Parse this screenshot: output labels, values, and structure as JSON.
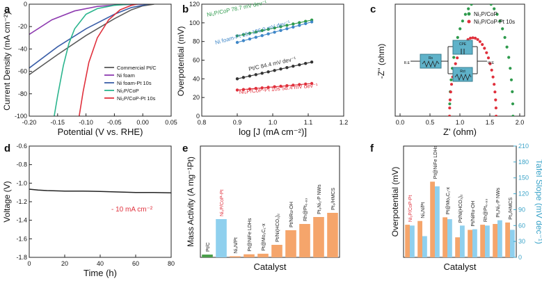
{
  "chart_data": [
    {
      "id": "a",
      "type": "line",
      "panel_label": "a",
      "xlabel": "Potential (V vs. RHE)",
      "ylabel": "Current Density (mA cm⁻²)",
      "xlim": [
        -0.2,
        0.05
      ],
      "ylim": [
        -100,
        0
      ],
      "xticks": [
        "-0.20",
        "-0.15",
        "-0.10",
        "-0.05",
        "0.00",
        "0.05"
      ],
      "yticks": [
        "0",
        "-20",
        "-40",
        "-60",
        "-80",
        "-100"
      ],
      "legend": "middle-right",
      "series": [
        {
          "name": "Commercial Pt/C",
          "color": "#5a5a5a",
          "x": [
            -0.2,
            -0.15,
            -0.1,
            -0.05,
            -0.02,
            0.0,
            0.02
          ],
          "y": [
            -63,
            -45,
            -28,
            -13,
            -5,
            -1.5,
            0
          ]
        },
        {
          "name": "Ni foam",
          "color": "#8e3bb0",
          "x": [
            -0.2,
            -0.16,
            -0.12,
            -0.08,
            -0.04,
            0.0
          ],
          "y": [
            -27,
            -14,
            -6,
            -2,
            -0.5,
            0
          ]
        },
        {
          "name": "Ni foam-Pt 10s",
          "color": "#3a5ea8",
          "x": [
            -0.2,
            -0.15,
            -0.1,
            -0.05,
            -0.02,
            0.01
          ],
          "y": [
            -57,
            -38,
            -22,
            -9,
            -3,
            0
          ]
        },
        {
          "name": "Ni₂P/CoP",
          "color": "#2bb58e",
          "x": [
            -0.156,
            -0.15,
            -0.14,
            -0.13,
            -0.12,
            -0.1,
            -0.08,
            -0.05,
            -0.02
          ],
          "y": [
            -100,
            -82,
            -55,
            -35,
            -22,
            -9,
            -4,
            -1,
            0
          ]
        },
        {
          "name": "Ni₂P/CoP-Pt 10s",
          "color": "#e0303c",
          "x": [
            -0.112,
            -0.105,
            -0.095,
            -0.08,
            -0.06,
            -0.04,
            -0.02,
            -0.01
          ],
          "y": [
            -100,
            -78,
            -52,
            -30,
            -14,
            -5,
            -1,
            0
          ]
        }
      ]
    },
    {
      "id": "b",
      "type": "scatter",
      "panel_label": "b",
      "xlabel": "log [J (mA cm⁻²)]",
      "ylabel": "Overpotential (mV)",
      "xlim": [
        0.8,
        1.2
      ],
      "ylim": [
        0,
        120
      ],
      "xticks": [
        "0.8",
        "0.9",
        "1.0",
        "1.1",
        "1.2"
      ],
      "yticks": [
        "0",
        "20",
        "40",
        "60",
        "80",
        "100",
        "120"
      ],
      "series": [
        {
          "name": "Ni₂P/CoP 78.7 mV dev⁻¹",
          "color": "#2e9a4c",
          "x0": 0.9,
          "x1": 1.11,
          "y0": 86,
          "y1": 103
        },
        {
          "name": "Ni foam-Pt 10s 106.9 mV dev⁻¹",
          "color": "#3f87c8",
          "x0": 0.9,
          "x1": 1.11,
          "y0": 79,
          "y1": 101
        },
        {
          "name": "Pt/C 84.4 mV dev⁻¹",
          "color": "#333333",
          "x0": 0.9,
          "x1": 1.11,
          "y0": 40,
          "y1": 58
        },
        {
          "name": "Ni₂P/CoP-Pt 10s 58.4 mV dev⁻¹",
          "color": "#e0303c",
          "x0": 0.9,
          "x1": 1.11,
          "y0": 28,
          "y1": 35
        }
      ]
    },
    {
      "id": "c",
      "type": "scatter",
      "panel_label": "c",
      "xlabel": "Z' (ohm)",
      "ylabel": "-Z'' (ohm)",
      "xlim": [
        0,
        2
      ],
      "ylim": [
        0,
        5
      ],
      "xticks": [
        "0.0",
        "0.5",
        "1.0",
        "1.5",
        "2.0"
      ],
      "legend": "top-right",
      "circuit_labels": [
        "R.E",
        "Rs",
        "CPE",
        "Rct",
        "W.E"
      ],
      "series": [
        {
          "name": "Ni₂P/CoP",
          "color": "#2e9a4c",
          "center": 1.33,
          "radius": 0.49,
          "ymax": 1.5
        },
        {
          "name": "Ni₂P/CoP-Pt 10s",
          "color": "#e0303c",
          "center": 1.2,
          "radius": 0.36,
          "ymax": 1.0
        }
      ]
    },
    {
      "id": "d",
      "type": "line",
      "panel_label": "d",
      "xlabel": "Time (h)",
      "ylabel": "Voltage (V)",
      "xlim": [
        0,
        80
      ],
      "ylim": [
        -1.8,
        -0.6
      ],
      "xticks": [
        "0",
        "20",
        "40",
        "60",
        "80"
      ],
      "yticks": [
        "-0.6",
        "-0.8",
        "-1.0",
        "-1.2",
        "-1.4",
        "-1.6",
        "-1.8"
      ],
      "annotation": "- 10 mA cm⁻²",
      "series": [
        {
          "name": "stability",
          "color": "#222222",
          "x": [
            0,
            5,
            10,
            20,
            30,
            40,
            50,
            60,
            70,
            80
          ],
          "y": [
            -1.065,
            -1.075,
            -1.08,
            -1.085,
            -1.085,
            -1.09,
            -1.095,
            -1.1,
            -1.1,
            -1.105
          ]
        }
      ]
    },
    {
      "id": "e",
      "type": "bar",
      "panel_label": "e",
      "xlabel": "Catalyst",
      "ylabel": "Mass Activity (A mg⁻¹Pt)",
      "ylim": [
        0,
        8
      ],
      "categories": [
        "Pt/C",
        "Ni₂P/CoP-Pt",
        "Ni₃N/Pt",
        "Pt@NiFe LDHs",
        "Pt@Mo₂C₁-x",
        "Pt/Ni(HCO₃)₂",
        "Pt/NiRu-OH",
        "Rh@Pt₀.₈₃",
        "Pt₃Ni₂-P NWs",
        "Pt₃/HMCS"
      ],
      "values": [
        0.2,
        2.75,
        0.08,
        0.22,
        0.26,
        0.9,
        1.95,
        2.4,
        2.9,
        3.2
      ],
      "colors": [
        "#4a9e4a",
        "#8fd0ee",
        "#f5a56b",
        "#f5a56b",
        "#f5a56b",
        "#f5a56b",
        "#f5a56b",
        "#f5a56b",
        "#f5a56b",
        "#f5a56b"
      ],
      "label_colors": [
        "#222222",
        "#e0303c",
        "#222222",
        "#222222",
        "#222222",
        "#222222",
        "#222222",
        "#222222",
        "#222222",
        "#222222"
      ]
    },
    {
      "id": "f",
      "type": "bar",
      "panel_label": "f",
      "xlabel": "Catalyst",
      "ylabel": "Overpotential (mV)",
      "ylabel_right": "Tafel Slope (mV dec⁻¹)",
      "ylim": [
        0,
        150
      ],
      "ylim_right": [
        0,
        210
      ],
      "yticks_right": [
        "0",
        "30",
        "60",
        "90",
        "120",
        "150",
        "180",
        "210"
      ],
      "categories": [
        "Ni₂P/CoP-Pt",
        "Ni₃N/Pt",
        "Pt@NiFe LDHs",
        "Pt@Mo₂C₁-x",
        "Pt/Ni(HCO₃)₂",
        "Pt/NiRu-OH",
        "Rh@Pt₀.₈₃",
        "Pt₃Ni₂-P NWs",
        "Pt₃/HMCS"
      ],
      "series": [
        {
          "name": "Overpotential",
          "axis": "left",
          "color": "#f5a56b",
          "values": [
            44,
            49,
            102,
            54,
            27,
            37,
            44,
            45,
            47
          ]
        },
        {
          "name": "Tafel Slope",
          "axis": "right",
          "color": "#8fd0ee",
          "values": [
            60,
            40,
            134,
            72,
            60,
            53,
            60,
            70,
            52
          ]
        }
      ],
      "label_colors": [
        "#e0303c",
        "#222222",
        "#222222",
        "#222222",
        "#222222",
        "#222222",
        "#222222",
        "#222222",
        "#222222"
      ]
    }
  ]
}
